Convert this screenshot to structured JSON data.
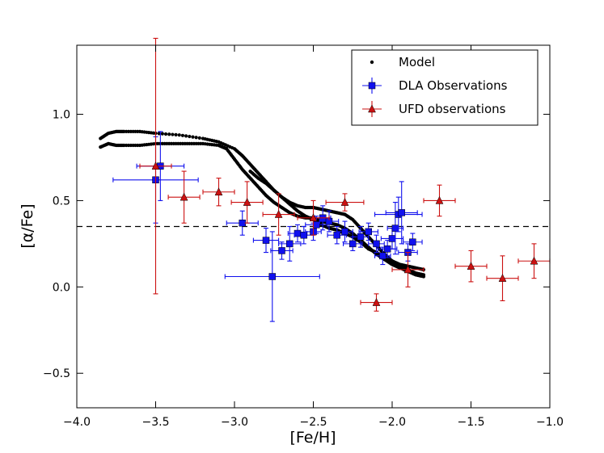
{
  "chart_data": {
    "type": "scatter",
    "xlabel": "[Fe/H]",
    "ylabel": "[α/Fe]",
    "xlim": [
      -4.0,
      -1.0
    ],
    "ylim": [
      -0.7,
      1.4
    ],
    "x_ticks": [
      -4.0,
      -3.5,
      -3.0,
      -2.5,
      -2.0,
      -1.5,
      -1.0
    ],
    "x_tick_labels": [
      "−4.0",
      "−3.5",
      "−3.0",
      "−2.5",
      "−2.0",
      "−1.5",
      "−1.0"
    ],
    "y_ticks": [
      -0.5,
      0.0,
      0.5,
      1.0
    ],
    "y_tick_labels": [
      "−0.5",
      "0.0",
      "0.5",
      "1.0"
    ],
    "reference_line": {
      "y": 0.35,
      "style": "dashed"
    },
    "legend": {
      "placement": "top-right",
      "entries": [
        "Model",
        "DLA Observations",
        "UFD observations"
      ]
    },
    "colors": {
      "model": "#000000",
      "dla": "#1010ee",
      "ufd": "#cc1111"
    },
    "series": [
      {
        "name": "Model",
        "marker": "dot",
        "note": "dense model track approximated by segments, sampled along",
        "segments": [
          {
            "x": [
              -3.85,
              -3.8,
              -3.75,
              -3.7,
              -3.6,
              -3.5,
              -3.35,
              -3.2,
              -3.1,
              -3.0,
              -2.95,
              -2.9,
              -2.85,
              -2.8,
              -2.75,
              -2.7,
              -2.65,
              -2.6,
              -2.55,
              -2.5,
              -2.45,
              -2.4,
              -2.35,
              -2.3,
              -2.25,
              -2.2,
              -2.15,
              -2.1,
              -2.05,
              -2.0,
              -1.95,
              -1.9,
              -1.85,
              -1.8
            ],
            "y": [
              0.86,
              0.89,
              0.9,
              0.9,
              0.9,
              0.89,
              0.88,
              0.86,
              0.84,
              0.8,
              0.76,
              0.71,
              0.66,
              0.61,
              0.56,
              0.52,
              0.49,
              0.47,
              0.46,
              0.46,
              0.45,
              0.44,
              0.43,
              0.42,
              0.39,
              0.34,
              0.29,
              0.24,
              0.19,
              0.15,
              0.12,
              0.1,
              0.08,
              0.07
            ]
          },
          {
            "x": [
              -3.85,
              -3.8,
              -3.75,
              -3.7,
              -3.6,
              -3.5,
              -3.4,
              -3.3,
              -3.2,
              -3.1,
              -3.05,
              -3.0,
              -2.95,
              -2.9,
              -2.85,
              -2.8,
              -2.75,
              -2.7,
              -2.65,
              -2.6,
              -2.55,
              -2.5,
              -2.45,
              -2.4,
              -2.35,
              -2.3,
              -2.25,
              -2.2,
              -2.15,
              -2.1,
              -2.05,
              -2.0,
              -1.95,
              -1.9,
              -1.85,
              -1.8
            ],
            "y": [
              0.81,
              0.83,
              0.82,
              0.82,
              0.82,
              0.83,
              0.83,
              0.83,
              0.83,
              0.82,
              0.8,
              0.74,
              0.68,
              0.63,
              0.58,
              0.53,
              0.49,
              0.46,
              0.43,
              0.41,
              0.4,
              0.4,
              0.38,
              0.37,
              0.36,
              0.34,
              0.31,
              0.27,
              0.23,
              0.19,
              0.16,
              0.13,
              0.11,
              0.09,
              0.07,
              0.06
            ]
          },
          {
            "x": [
              -2.9,
              -2.85,
              -2.8,
              -2.75,
              -2.7,
              -2.65,
              -2.6,
              -2.55,
              -2.5,
              -2.45,
              -2.4,
              -2.35,
              -2.3,
              -2.25,
              -2.2,
              -2.15,
              -2.1,
              -2.05,
              -2.0,
              -1.95,
              -1.9,
              -1.85,
              -1.8
            ],
            "y": [
              0.67,
              0.63,
              0.6,
              0.56,
              0.52,
              0.48,
              0.44,
              0.41,
              0.39,
              0.36,
              0.34,
              0.33,
              0.31,
              0.29,
              0.26,
              0.22,
              0.2,
              0.17,
              0.15,
              0.13,
              0.12,
              0.11,
              0.1
            ]
          }
        ]
      },
      {
        "name": "DLA Observations",
        "marker": "square",
        "points": [
          {
            "x": -3.5,
            "y": 0.62,
            "xerr": 0.27,
            "yerr": 0.25
          },
          {
            "x": -3.47,
            "y": 0.7,
            "xerr": 0.15,
            "yerr": 0.2
          },
          {
            "x": -2.95,
            "y": 0.37,
            "xerr": 0.1,
            "yerr": 0.07
          },
          {
            "x": -2.8,
            "y": 0.27,
            "xerr": 0.08,
            "yerr": 0.07
          },
          {
            "x": -2.76,
            "y": 0.06,
            "xerr": 0.3,
            "yerr": 0.26
          },
          {
            "x": -2.7,
            "y": 0.21,
            "xerr": 0.07,
            "yerr": 0.05
          },
          {
            "x": -2.65,
            "y": 0.25,
            "xerr": 0.07,
            "yerr": 0.1
          },
          {
            "x": -2.6,
            "y": 0.31,
            "xerr": 0.06,
            "yerr": 0.05
          },
          {
            "x": -2.56,
            "y": 0.3,
            "xerr": 0.06,
            "yerr": 0.05
          },
          {
            "x": -2.5,
            "y": 0.32,
            "xerr": 0.05,
            "yerr": 0.05
          },
          {
            "x": -2.48,
            "y": 0.36,
            "xerr": 0.07,
            "yerr": 0.05
          },
          {
            "x": -2.44,
            "y": 0.4,
            "xerr": 0.05,
            "yerr": 0.07
          },
          {
            "x": -2.4,
            "y": 0.38,
            "xerr": 0.06,
            "yerr": 0.06
          },
          {
            "x": -2.35,
            "y": 0.3,
            "xerr": 0.06,
            "yerr": 0.05
          },
          {
            "x": -2.3,
            "y": 0.32,
            "xerr": 0.05,
            "yerr": 0.06
          },
          {
            "x": -2.25,
            "y": 0.25,
            "xerr": 0.06,
            "yerr": 0.04
          },
          {
            "x": -2.2,
            "y": 0.29,
            "xerr": 0.05,
            "yerr": 0.06
          },
          {
            "x": -2.15,
            "y": 0.32,
            "xerr": 0.06,
            "yerr": 0.05
          },
          {
            "x": -2.1,
            "y": 0.25,
            "xerr": 0.05,
            "yerr": 0.05
          },
          {
            "x": -2.06,
            "y": 0.18,
            "xerr": 0.05,
            "yerr": 0.05
          },
          {
            "x": -2.03,
            "y": 0.22,
            "xerr": 0.06,
            "yerr": 0.05
          },
          {
            "x": -2.0,
            "y": 0.28,
            "xerr": 0.07,
            "yerr": 0.06
          },
          {
            "x": -1.98,
            "y": 0.34,
            "xerr": 0.05,
            "yerr": 0.15
          },
          {
            "x": -1.96,
            "y": 0.42,
            "xerr": 0.15,
            "yerr": 0.1
          },
          {
            "x": -1.94,
            "y": 0.43,
            "xerr": 0.1,
            "yerr": 0.18
          },
          {
            "x": -1.9,
            "y": 0.2,
            "xerr": 0.06,
            "yerr": 0.05
          },
          {
            "x": -1.87,
            "y": 0.26,
            "xerr": 0.06,
            "yerr": 0.05
          }
        ]
      },
      {
        "name": "UFD observations",
        "marker": "triangle",
        "points": [
          {
            "x": -3.5,
            "y": 0.7,
            "xerr": 0.1,
            "yerr": 0.74
          },
          {
            "x": -3.32,
            "y": 0.52,
            "xerr": 0.1,
            "yerr": 0.15
          },
          {
            "x": -3.1,
            "y": 0.55,
            "xerr": 0.1,
            "yerr": 0.08
          },
          {
            "x": -2.92,
            "y": 0.49,
            "xerr": 0.1,
            "yerr": 0.12
          },
          {
            "x": -2.72,
            "y": 0.42,
            "xerr": 0.1,
            "yerr": 0.12
          },
          {
            "x": -2.5,
            "y": 0.4,
            "xerr": 0.1,
            "yerr": 0.1
          },
          {
            "x": -2.3,
            "y": 0.49,
            "xerr": 0.12,
            "yerr": 0.05
          },
          {
            "x": -2.1,
            "y": -0.09,
            "xerr": 0.1,
            "yerr": 0.05
          },
          {
            "x": -1.9,
            "y": 0.1,
            "xerr": 0.1,
            "yerr": 0.1
          },
          {
            "x": -1.7,
            "y": 0.5,
            "xerr": 0.1,
            "yerr": 0.09
          },
          {
            "x": -1.5,
            "y": 0.12,
            "xerr": 0.1,
            "yerr": 0.09
          },
          {
            "x": -1.3,
            "y": 0.05,
            "xerr": 0.1,
            "yerr": 0.13
          },
          {
            "x": -1.1,
            "y": 0.15,
            "xerr": 0.1,
            "yerr": 0.1
          }
        ]
      }
    ]
  }
}
